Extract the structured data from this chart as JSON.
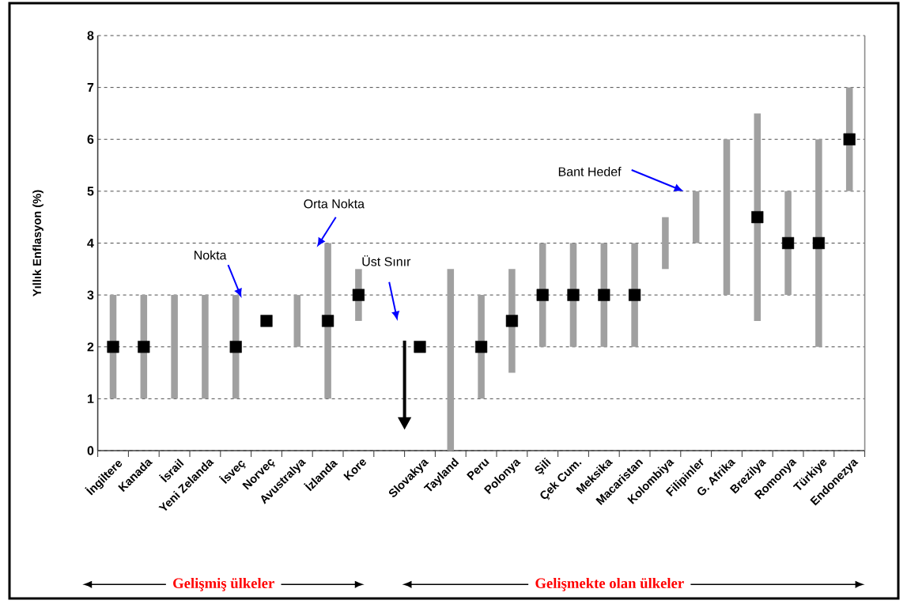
{
  "chart_data": {
    "type": "bar",
    "ylabel": "Yıllık Enflasyon (%)",
    "categories": [
      "İngiltere",
      "Kanada",
      "İsrail",
      "Yeni Zelanda",
      "İsveç",
      "Norveç",
      "Avustralya",
      "İzlanda",
      "Kore",
      null,
      "Slovakya",
      "Tayland",
      "Peru",
      "Polonya",
      "Şili",
      "Çek Cum.",
      "Meksika",
      "Macaristan",
      "Kolombiya",
      "Filipinler",
      "G. Afrika",
      "Brezilya",
      "Romonya",
      "Türkiye",
      "Endonezya"
    ],
    "series": [
      {
        "type": "bar",
        "color": "#a0a0a0",
        "base": [
          1,
          1,
          1,
          1,
          1,
          null,
          2,
          1,
          2.5,
          null,
          null,
          0,
          1,
          1.5,
          2,
          2,
          2,
          2,
          3.5,
          4,
          3,
          2.5,
          3,
          2,
          5
        ],
        "values": [
          2,
          2,
          2,
          2,
          2,
          null,
          1,
          3,
          1,
          null,
          null,
          3.5,
          2,
          2,
          2,
          2,
          2,
          2,
          1,
          1,
          3,
          4,
          2,
          4,
          2
        ]
      },
      {
        "type": "scatter",
        "color": "#000000",
        "marker": "square",
        "values": [
          2,
          2,
          null,
          null,
          2,
          2.5,
          null,
          2.5,
          3,
          null,
          2,
          null,
          2,
          2.5,
          3,
          3,
          3,
          3,
          null,
          null,
          null,
          4.5,
          4,
          4,
          6
        ]
      }
    ],
    "ylim": [
      0,
      8
    ],
    "yticks": [
      0,
      1,
      2,
      3,
      4,
      5,
      6,
      7,
      8
    ],
    "grid": "y",
    "annotations": [
      {
        "text": "Nokta",
        "x": "İsveç",
        "y": 3
      },
      {
        "text": "Orta Nokta",
        "x": "İzlanda",
        "y": 4
      },
      "Üst Sınır",
      "Bant Hedef",
      "Gelişmiş ülkeler",
      "Gelişmekte olan ülkeler"
    ]
  }
}
